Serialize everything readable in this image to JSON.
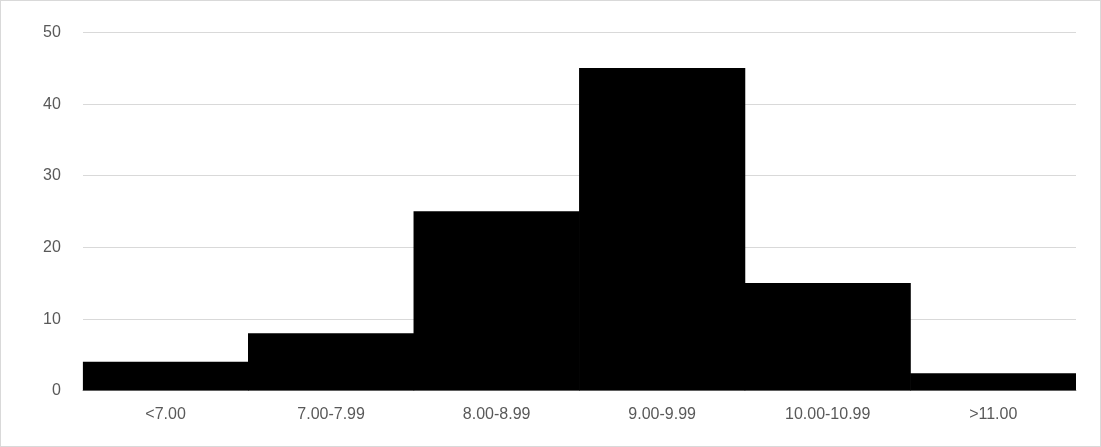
{
  "chart_data": {
    "type": "bar",
    "categories": [
      "<7.00",
      "7.00-7.99",
      "8.00-8.99",
      "9.00-9.99",
      "10.00-10.99",
      ">11.00"
    ],
    "values": [
      4,
      8,
      25,
      45,
      15,
      2.4
    ],
    "color": "#000000",
    "ylim": [
      0,
      50
    ],
    "yticks": [
      0,
      10,
      20,
      30,
      40,
      50
    ],
    "grid": "y",
    "legend": false
  }
}
